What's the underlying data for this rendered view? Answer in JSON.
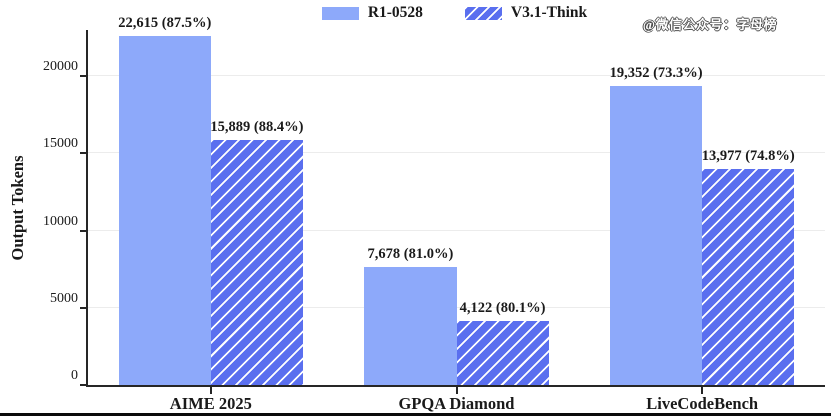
{
  "watermark": "@微信公众号：字母榜",
  "chart_data": {
    "type": "bar",
    "title": "",
    "xlabel": "",
    "ylabel": "Output Tokens",
    "categories": [
      "AIME 2025",
      "GPQA Diamond",
      "LiveCodeBench"
    ],
    "series": [
      {
        "name": "R1-0528",
        "style": "solid",
        "values": [
          22615,
          7678,
          19352
        ],
        "accuracies": [
          "87.5%",
          "81.0%",
          "73.3%"
        ],
        "labels": [
          "22,615 (87.5%)",
          "7,678 (81.0%)",
          "19,352 (73.3%)"
        ]
      },
      {
        "name": "V3.1-Think",
        "style": "hatched",
        "values": [
          15889,
          4122,
          13977
        ],
        "accuracies": [
          "88.4%",
          "80.1%",
          "74.8%"
        ],
        "labels": [
          "15,889 (88.4%)",
          "4,122 (80.1%)",
          "13,977 (74.8%)"
        ]
      }
    ],
    "ylim": [
      0,
      23000
    ],
    "yticks": [
      0,
      5000,
      10000,
      15000,
      20000
    ],
    "grid": true,
    "legend_position": "top-center",
    "colors": {
      "solid_bar": "#8DA9FA",
      "hatched_bar_base": "#5A6FEF",
      "hatch_stripe": "#ffffff",
      "gridline": "#ececec",
      "spine": "#262626",
      "text": "#1a1a1a"
    }
  }
}
